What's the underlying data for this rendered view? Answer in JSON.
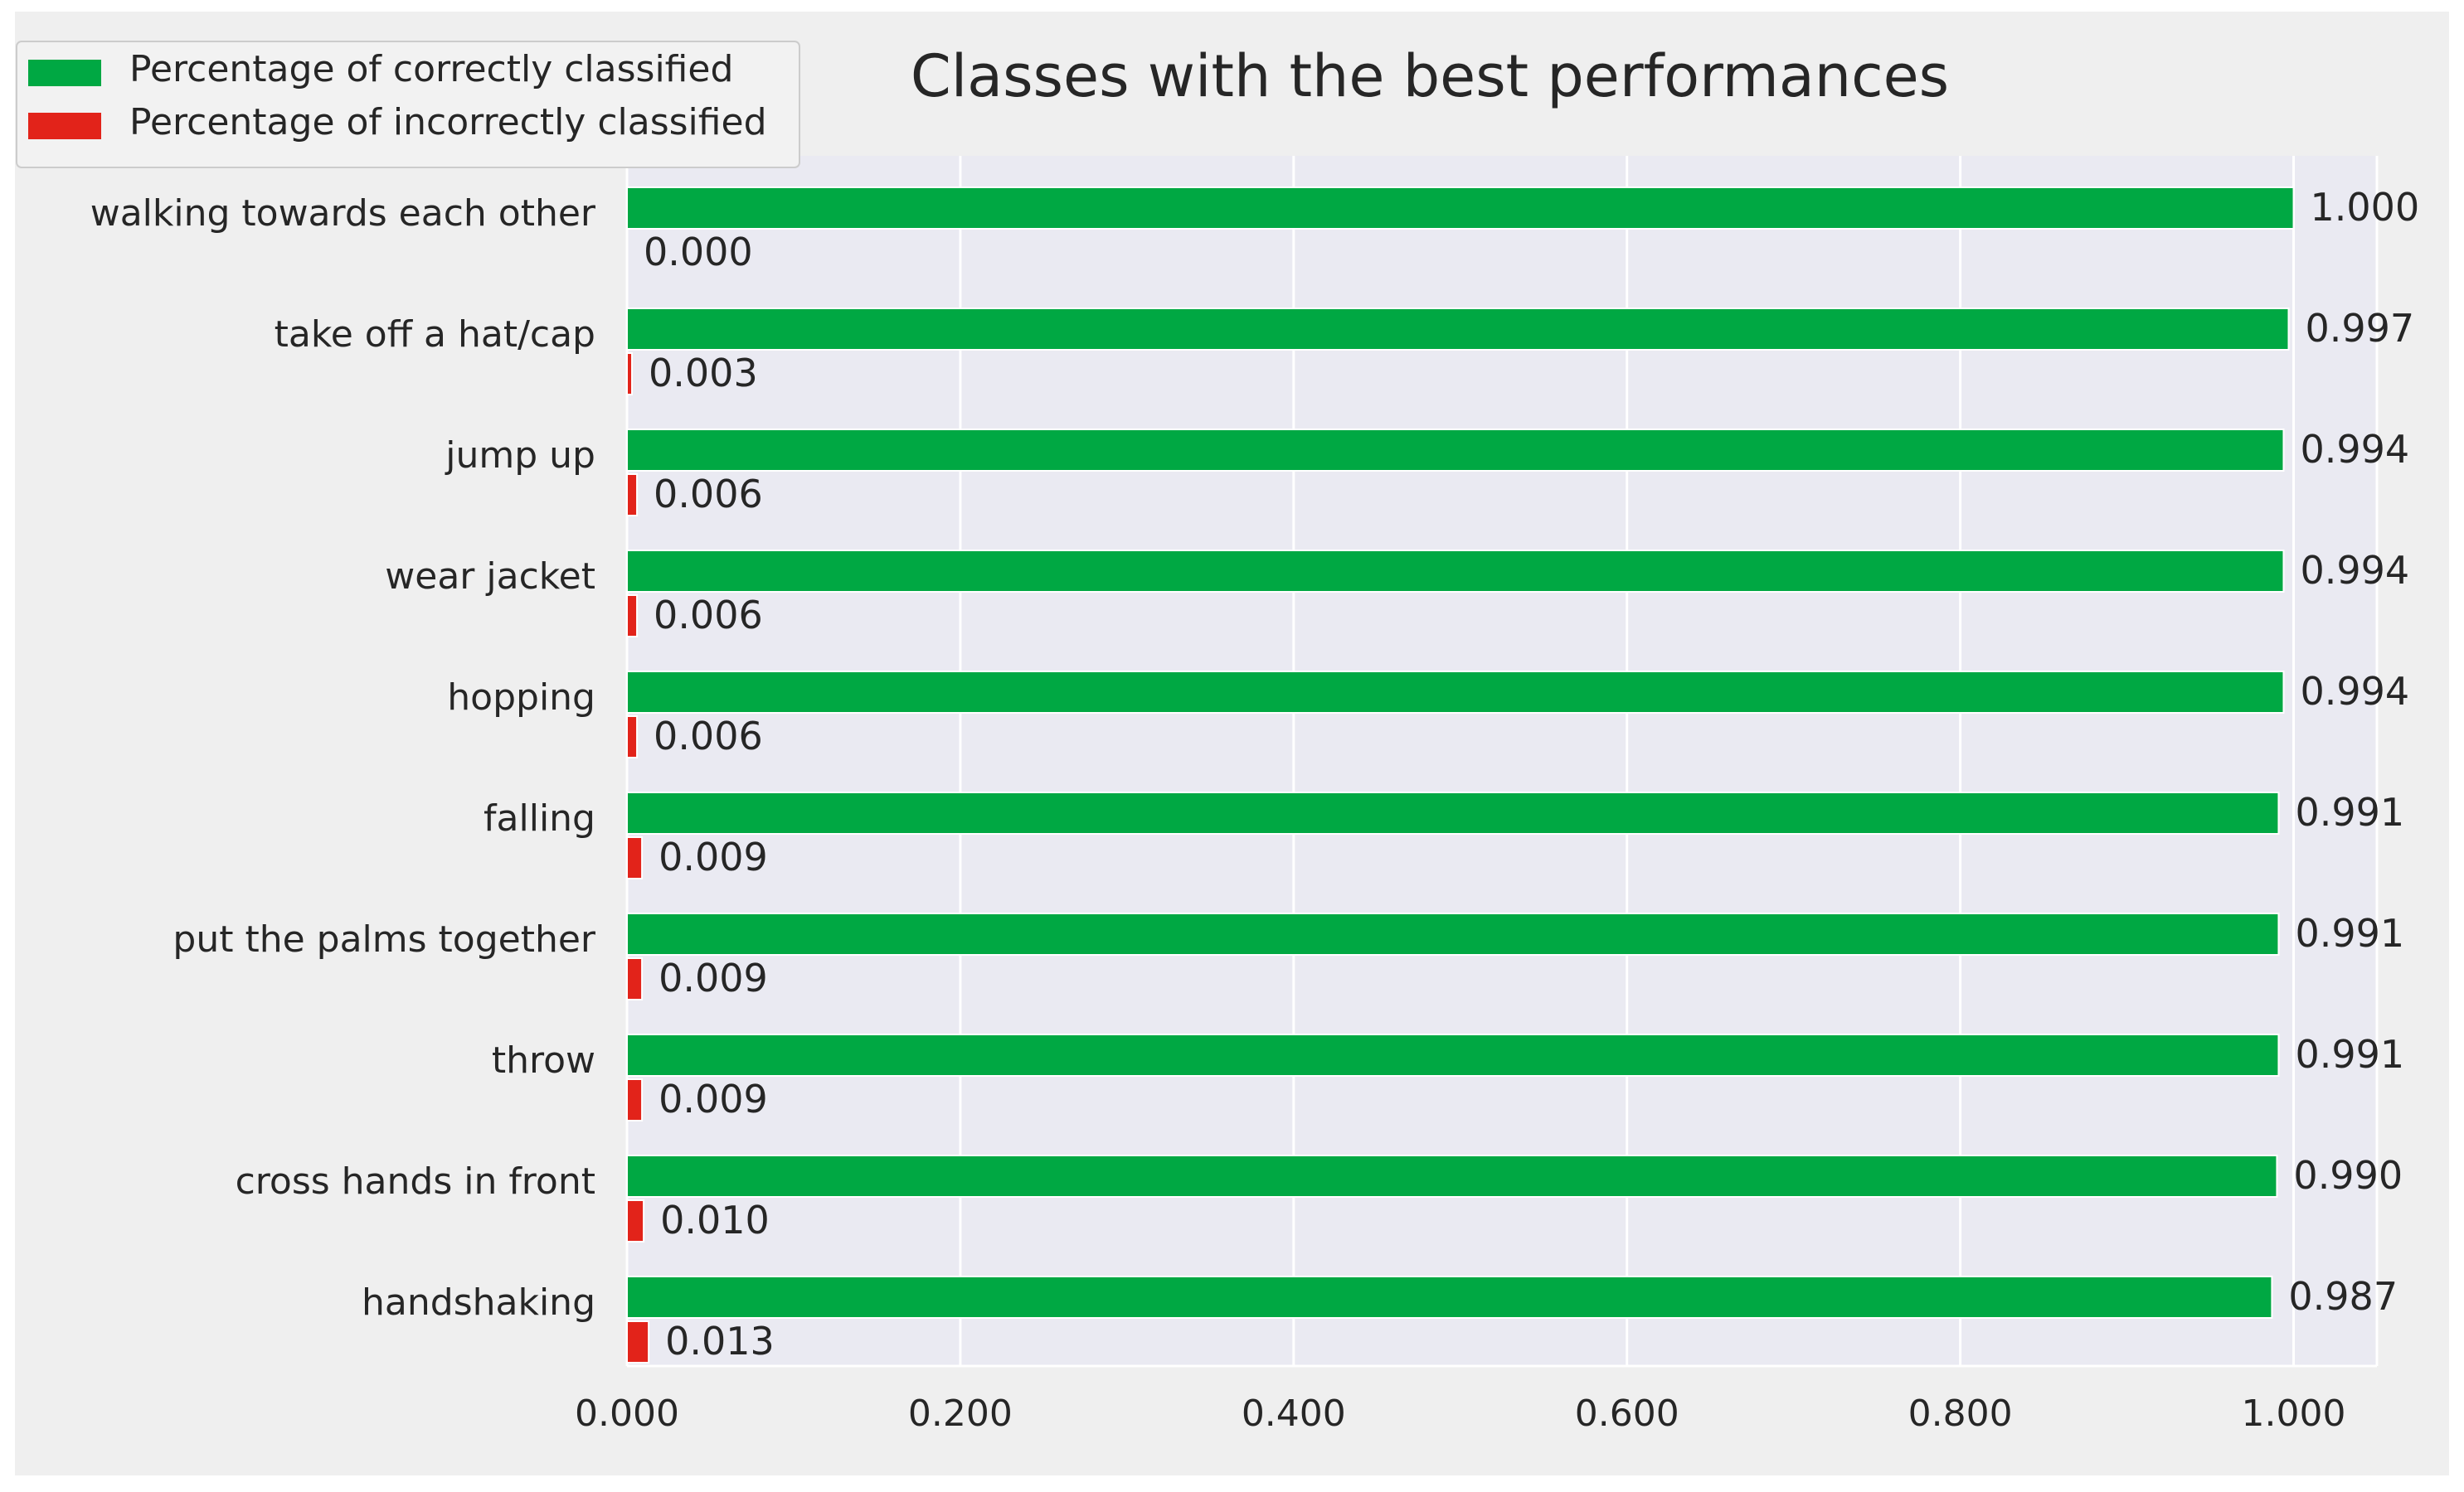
{
  "chart_data": {
    "type": "bar",
    "orientation": "horizontal",
    "title": "Classes with the best performances",
    "xlabel": "",
    "ylabel": "",
    "xlim": [
      0,
      1.05
    ],
    "xticks": [
      0.0,
      0.2,
      0.4,
      0.6,
      0.8,
      1.0
    ],
    "xtick_labels": [
      "0.000",
      "0.200",
      "0.400",
      "0.600",
      "0.800",
      "1.000"
    ],
    "grid": true,
    "legend_position": "top-left",
    "categories": [
      "walking towards each other",
      "take off a hat/cap",
      "jump up",
      "wear jacket",
      "hopping",
      "falling",
      "put the palms together",
      "throw",
      "cross hands in front",
      "handshaking"
    ],
    "series": [
      {
        "name": "Percentage of correctly classified",
        "color": "#00a843",
        "values": [
          1.0,
          0.997,
          0.994,
          0.994,
          0.994,
          0.991,
          0.991,
          0.991,
          0.99,
          0.987
        ],
        "labels": [
          "1.000",
          "0.997",
          "0.994",
          "0.994",
          "0.994",
          "0.991",
          "0.991",
          "0.991",
          "0.990",
          "0.987"
        ]
      },
      {
        "name": "Percentage of incorrectly classified",
        "color": "#e2231a",
        "values": [
          0.0,
          0.003,
          0.006,
          0.006,
          0.006,
          0.009,
          0.009,
          0.009,
          0.01,
          0.013
        ],
        "labels": [
          "0.000",
          "0.003",
          "0.006",
          "0.006",
          "0.006",
          "0.009",
          "0.009",
          "0.009",
          "0.010",
          "0.013"
        ]
      }
    ]
  },
  "colors": {
    "figure_background": "#efefef",
    "axes_background": "#eaeaf2",
    "grid": "#ffffff",
    "text": "#262626"
  }
}
